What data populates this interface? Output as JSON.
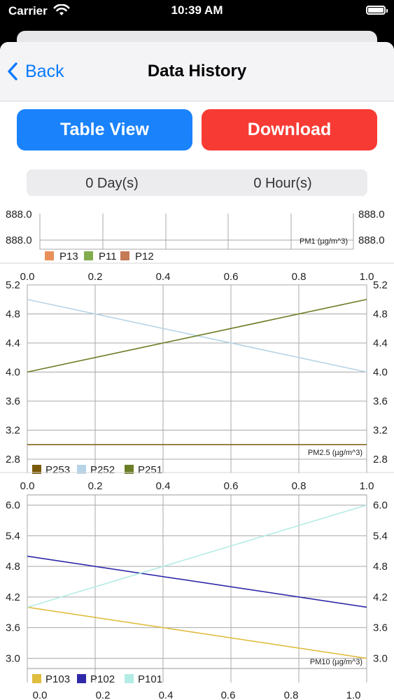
{
  "status_bar": {
    "carrier": "Carrier",
    "time": "10:39 AM",
    "icons": [
      "wifi-icon",
      "battery-icon"
    ]
  },
  "nav": {
    "back_label": "Back",
    "title": "Data History",
    "back_icon": "chevron-left-icon"
  },
  "buttons": {
    "table_view": "Table View",
    "download": "Download"
  },
  "duration": {
    "days": "0 Day(s)",
    "hours": "0 Hour(s)"
  },
  "colors": {
    "accent_blue": "#1a82fb",
    "destructive_red": "#f73b34"
  },
  "chart_data": [
    {
      "type": "line",
      "ylabel": "PM1 (µg/m^3)",
      "y_tick_labels": [
        "888.0"
      ],
      "legend": [
        "P13",
        "P11",
        "P12"
      ],
      "series": [
        {
          "name": "P13",
          "color": "#e9905a",
          "x": [],
          "y": []
        },
        {
          "name": "P11",
          "color": "#82ac4e",
          "x": [],
          "y": []
        },
        {
          "name": "P12",
          "color": "#c57a56",
          "x": [],
          "y": []
        }
      ]
    },
    {
      "type": "line",
      "ylabel": "PM2.5 (µg/m^3)",
      "xlim": [
        0,
        1
      ],
      "ylim": [
        2.8,
        5.2
      ],
      "x_ticks": [
        "0.0",
        "0.2",
        "0.4",
        "0.6",
        "0.8",
        "1.0"
      ],
      "y_ticks": [
        "2.8",
        "3.2",
        "3.6",
        "4.0",
        "4.4",
        "4.8",
        "5.2"
      ],
      "legend": [
        "P253",
        "P252",
        "P251"
      ],
      "series": [
        {
          "name": "P253",
          "color": "#7a5a08",
          "x": [
            0,
            1
          ],
          "y": [
            3.0,
            3.0
          ]
        },
        {
          "name": "P252",
          "color": "#b6d4e6",
          "x": [
            0,
            1
          ],
          "y": [
            5.0,
            4.0
          ]
        },
        {
          "name": "P251",
          "color": "#6b7d24",
          "x": [
            0,
            1
          ],
          "y": [
            4.0,
            5.0
          ]
        }
      ]
    },
    {
      "type": "line",
      "ylabel": "PM10 (µg/m^3)",
      "xlim": [
        0,
        1
      ],
      "ylim": [
        2.8,
        6.2
      ],
      "x_ticks": [
        "0.0",
        "0.2",
        "0.4",
        "0.6",
        "0.8",
        "1.0"
      ],
      "y_ticks": [
        "3.0",
        "3.6",
        "4.2",
        "4.8",
        "5.4",
        "6.0"
      ],
      "legend": [
        "P103",
        "P102",
        "P101"
      ],
      "series": [
        {
          "name": "P103",
          "color": "#e0bd3e",
          "x": [
            0,
            1
          ],
          "y": [
            4.0,
            3.0
          ]
        },
        {
          "name": "P102",
          "color": "#2f29a8",
          "x": [
            0,
            1
          ],
          "y": [
            5.0,
            4.0
          ]
        },
        {
          "name": "P101",
          "color": "#b3ece4",
          "x": [
            0,
            1
          ],
          "y": [
            4.0,
            6.0
          ]
        }
      ]
    }
  ]
}
